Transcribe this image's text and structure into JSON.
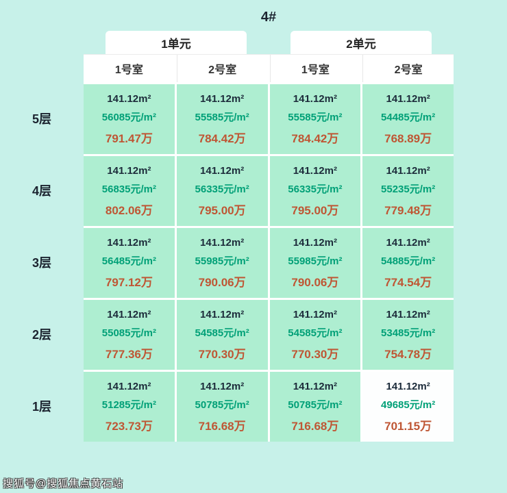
{
  "page": {
    "title": "4#",
    "watermark": "搜狐号@搜狐焦点黄石站"
  },
  "table": {
    "unit_headers": [
      "1单元",
      "2单元"
    ],
    "room_headers": [
      "1号室",
      "2号室",
      "1号室",
      "2号室"
    ],
    "floors": [
      {
        "label": "5层",
        "cells": [
          {
            "area": "141.12m²",
            "unit_price": "56085元/m²",
            "total": "791.47万"
          },
          {
            "area": "141.12m²",
            "unit_price": "55585元/m²",
            "total": "784.42万"
          },
          {
            "area": "141.12m²",
            "unit_price": "55585元/m²",
            "total": "784.42万"
          },
          {
            "area": "141.12m²",
            "unit_price": "54485元/m²",
            "total": "768.89万"
          }
        ]
      },
      {
        "label": "4层",
        "cells": [
          {
            "area": "141.12m²",
            "unit_price": "56835元/m²",
            "total": "802.06万"
          },
          {
            "area": "141.12m²",
            "unit_price": "56335元/m²",
            "total": "795.00万"
          },
          {
            "area": "141.12m²",
            "unit_price": "56335元/m²",
            "total": "795.00万"
          },
          {
            "area": "141.12m²",
            "unit_price": "55235元/m²",
            "total": "779.48万"
          }
        ]
      },
      {
        "label": "3层",
        "cells": [
          {
            "area": "141.12m²",
            "unit_price": "56485元/m²",
            "total": "797.12万"
          },
          {
            "area": "141.12m²",
            "unit_price": "55985元/m²",
            "total": "790.06万"
          },
          {
            "area": "141.12m²",
            "unit_price": "55985元/m²",
            "total": "790.06万"
          },
          {
            "area": "141.12m²",
            "unit_price": "54885元/m²",
            "total": "774.54万"
          }
        ]
      },
      {
        "label": "2层",
        "cells": [
          {
            "area": "141.12m²",
            "unit_price": "55085元/m²",
            "total": "777.36万"
          },
          {
            "area": "141.12m²",
            "unit_price": "54585元/m²",
            "total": "770.30万"
          },
          {
            "area": "141.12m²",
            "unit_price": "54585元/m²",
            "total": "770.30万"
          },
          {
            "area": "141.12m²",
            "unit_price": "53485元/m²",
            "total": "754.78万"
          }
        ]
      },
      {
        "label": "1层",
        "cells": [
          {
            "area": "141.12m²",
            "unit_price": "51285元/m²",
            "total": "723.73万"
          },
          {
            "area": "141.12m²",
            "unit_price": "50785元/m²",
            "total": "716.68万"
          },
          {
            "area": "141.12m²",
            "unit_price": "50785元/m²",
            "total": "716.68万"
          },
          {
            "area": "141.12m²",
            "unit_price": "49685元/m²",
            "total": "701.15万"
          }
        ]
      }
    ]
  },
  "chart_data": {
    "type": "table",
    "title": "4#",
    "column_groups": [
      "1单元",
      "2单元"
    ],
    "columns": [
      "1号室",
      "2号室",
      "1号室",
      "2号室"
    ],
    "rows": [
      "5层",
      "4层",
      "3层",
      "2层",
      "1层"
    ],
    "area_m2": 141.12,
    "unit_price_yuan_per_m2": [
      [
        56085,
        55585,
        55585,
        54485
      ],
      [
        56835,
        56335,
        56335,
        55235
      ],
      [
        56485,
        55985,
        55985,
        54885
      ],
      [
        55085,
        54585,
        54585,
        53485
      ],
      [
        51285,
        50785,
        50785,
        49685
      ]
    ],
    "total_price_wan": [
      [
        791.47,
        784.42,
        784.42,
        768.89
      ],
      [
        802.06,
        795.0,
        795.0,
        779.48
      ],
      [
        797.12,
        790.06,
        790.06,
        774.54
      ],
      [
        777.36,
        770.3,
        770.3,
        754.78
      ],
      [
        723.73,
        716.68,
        716.68,
        701.15
      ]
    ]
  },
  "colors": {
    "background": "#c7f1e9",
    "cell": "#aeeed1",
    "area_text": "#1c2b3a",
    "unit_price_text": "#00a077",
    "total_text": "#bf5634"
  }
}
